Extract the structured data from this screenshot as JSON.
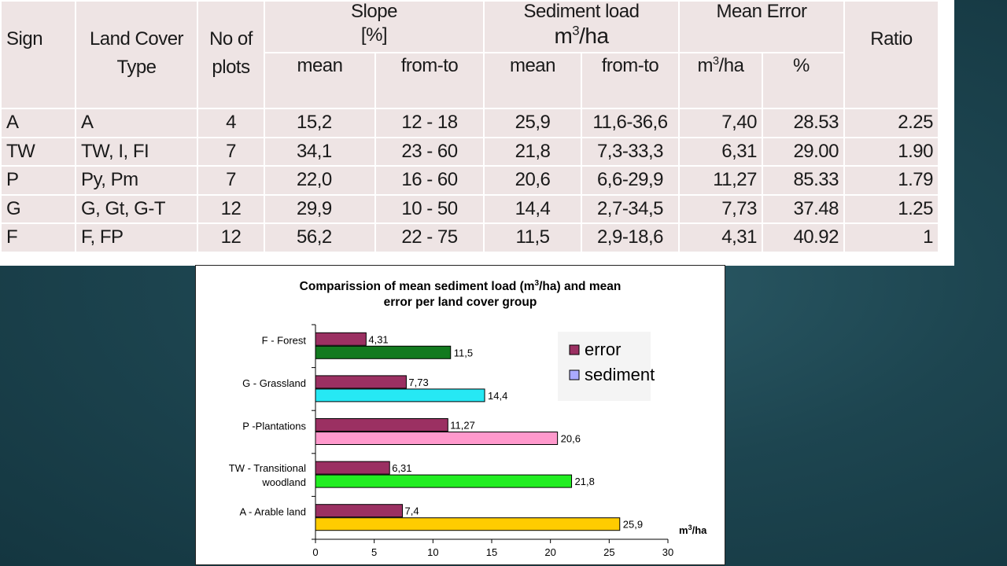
{
  "table": {
    "headers": {
      "sign": "Sign",
      "land_cover_line1": "Land Cover",
      "land_cover_line2": "Type",
      "no_of_line1": "No of",
      "no_of_line2": "plots",
      "slope_line1": "Slope",
      "slope_line2": "[%]",
      "sediment_line1": "Sediment load",
      "sediment_unit_base": "m",
      "sediment_unit_sup": "3",
      "sediment_unit_rest": "/ha",
      "mean_error": "Mean Error",
      "ratio": "Ratio",
      "slope_mean": "mean",
      "slope_range": "from-to",
      "sed_mean": "mean",
      "sed_range": "from-to",
      "err_unit_base": "m",
      "err_unit_sup": "3",
      "err_unit_rest": "/ha",
      "err_pct": "%"
    },
    "rows": [
      {
        "sign": "A",
        "land": "A",
        "plots": "4",
        "slope_mean": "15,2",
        "slope_range": "12 - 18",
        "sed_mean": "25,9",
        "sed_range": "11,6-36,6",
        "err_m3": "7,40",
        "err_pct": "28.53",
        "ratio": "2.25"
      },
      {
        "sign": "TW",
        "land": "TW, I, FI",
        "plots": "7",
        "slope_mean": "34,1",
        "slope_range": "23 - 60",
        "sed_mean": "21,8",
        "sed_range": "7,3-33,3",
        "err_m3": "6,31",
        "err_pct": "29.00",
        "ratio": "1.90"
      },
      {
        "sign": "P",
        "land": "Py, Pm",
        "plots": "7",
        "slope_mean": "22,0",
        "slope_range": "16 - 60",
        "sed_mean": "20,6",
        "sed_range": "6,6-29,9",
        "err_m3": "11,27",
        "err_pct": "85.33",
        "ratio": "1.79"
      },
      {
        "sign": "G",
        "land": "G, Gt, G-T",
        "plots": "12",
        "slope_mean": "29,9",
        "slope_range": "10 - 50",
        "sed_mean": "14,4",
        "sed_range": "2,7-34,5",
        "err_m3": "7,73",
        "err_pct": "37.48",
        "ratio": "1.25"
      },
      {
        "sign": "F",
        "land": "F, FP",
        "plots": "12",
        "slope_mean": "56,2",
        "slope_range": "22 - 75",
        "sed_mean": "11,5",
        "sed_range": "2,9-18,6",
        "err_m3": "4,31",
        "err_pct": "40.92",
        "ratio": "1"
      }
    ]
  },
  "chart_data": {
    "type": "bar",
    "orientation": "horizontal",
    "title_line1_pre": "Comparission of mean sediment load (m",
    "title_line1_sup": "3",
    "title_line1_post": "/ha) and mean",
    "title_line2": "error per land cover group",
    "categories": [
      "F - Forest",
      "G - Grassland",
      "P -Plantations",
      "TW - Transitional woodland",
      "A - Arable land"
    ],
    "series": [
      {
        "name": "error",
        "values": [
          4.31,
          7.73,
          11.27,
          6.31,
          7.4
        ],
        "labels": [
          "4,31",
          "7,73",
          "11,27",
          "6,31",
          "7,4"
        ],
        "color": "#9b3062"
      },
      {
        "name": "sediment",
        "values": [
          11.5,
          14.4,
          20.6,
          21.8,
          25.9
        ],
        "labels": [
          "11,5",
          "14,4",
          "20,6",
          "21,8",
          "25,9"
        ],
        "colors": [
          "#127a1f",
          "#26e8f4",
          "#ff99cc",
          "#22ee22",
          "#ffcc00"
        ]
      }
    ],
    "legend": {
      "position": "top-right",
      "items": [
        {
          "label": "error",
          "color": "#9b3062"
        },
        {
          "label": "sediment",
          "color": "#aaaaff"
        }
      ]
    },
    "xlim": [
      0,
      30
    ],
    "xticks": [
      0,
      5,
      10,
      15,
      20,
      25,
      30
    ],
    "xunit_base": "m",
    "xunit_sup": "3",
    "xunit_rest": "/ha"
  }
}
